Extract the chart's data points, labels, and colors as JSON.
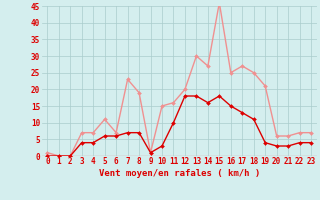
{
  "x": [
    0,
    1,
    2,
    3,
    4,
    5,
    6,
    7,
    8,
    9,
    10,
    11,
    12,
    13,
    14,
    15,
    16,
    17,
    18,
    19,
    20,
    21,
    22,
    23
  ],
  "vent_moyen": [
    0,
    0,
    0,
    4,
    4,
    6,
    6,
    7,
    7,
    1,
    3,
    10,
    18,
    18,
    16,
    18,
    15,
    13,
    11,
    4,
    3,
    3,
    4,
    4
  ],
  "rafales": [
    1,
    0,
    0,
    7,
    7,
    11,
    7,
    23,
    19,
    1,
    15,
    16,
    20,
    30,
    27,
    46,
    25,
    27,
    25,
    21,
    6,
    6,
    7,
    7
  ],
  "color_moyen": "#dd0000",
  "color_rafales": "#f09090",
  "bg_color": "#d4eeee",
  "grid_color": "#aacccc",
  "xlabel": "Vent moyen/en rafales ( km/h )",
  "ylim": [
    0,
    45
  ],
  "yticks": [
    0,
    5,
    10,
    15,
    20,
    25,
    30,
    35,
    40,
    45
  ],
  "xticks": [
    0,
    1,
    2,
    3,
    4,
    5,
    6,
    7,
    8,
    9,
    10,
    11,
    12,
    13,
    14,
    15,
    16,
    17,
    18,
    19,
    20,
    21,
    22,
    23
  ],
  "marker_size": 2.0,
  "line_width": 1.0,
  "tick_fontsize": 5.5,
  "xlabel_fontsize": 6.5
}
